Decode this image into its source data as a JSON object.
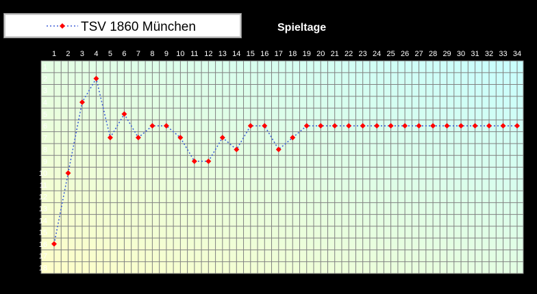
{
  "chart_data": {
    "type": "line",
    "title": "Spieltage",
    "x": [
      1,
      2,
      3,
      4,
      5,
      6,
      7,
      8,
      9,
      10,
      11,
      12,
      13,
      14,
      15,
      16,
      17,
      18,
      19,
      20,
      21,
      22,
      23,
      24,
      25,
      26,
      27,
      28,
      29,
      30,
      31,
      32,
      33,
      34
    ],
    "series": [
      {
        "name": "TSV 1860 München",
        "values": [
          16,
          10,
          4,
          2,
          7,
          5,
          7,
          6,
          6,
          7,
          9,
          9,
          7,
          8,
          6,
          6,
          8,
          7,
          6,
          6,
          6,
          6,
          6,
          6,
          6,
          6,
          6,
          6,
          6,
          6,
          6,
          6,
          6,
          6
        ],
        "line_color": "#3b5bd6",
        "marker_color": "#ff0000",
        "line_style": "dotted",
        "marker": "diamond"
      }
    ],
    "xlim": [
      1,
      34
    ],
    "ylim": [
      1,
      18
    ],
    "y_reversed": true,
    "x_axis_position": "top",
    "grid": true,
    "legend": "top-left",
    "colors": {
      "background": "#000000",
      "plot_gradient": [
        "#fefec8",
        "#c8fefe"
      ],
      "grid": "#808080",
      "text": "#ffffff"
    }
  }
}
